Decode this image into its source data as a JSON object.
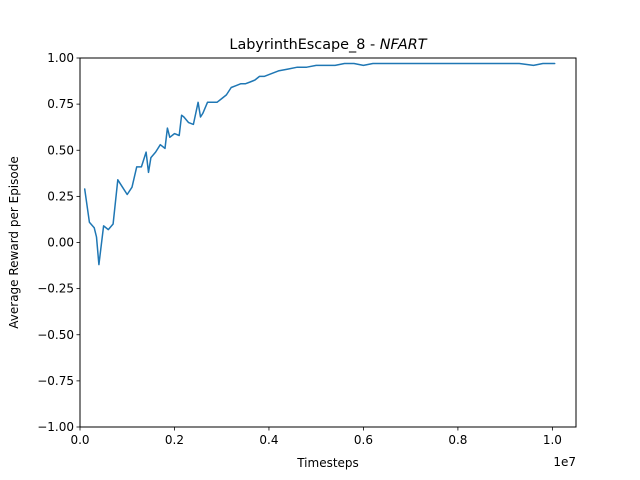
{
  "chart_data": {
    "type": "line",
    "title_main": "LabyrinthEscape_8 - ",
    "title_emph": "NFART",
    "xlabel": "Timesteps",
    "ylabel": "Average Reward per Episode",
    "x_offset_label": "1e7",
    "x_scale": 10000000,
    "xlim": [
      0,
      10500000
    ],
    "ylim": [
      -1.0,
      1.0
    ],
    "x_ticks": [
      0,
      2000000,
      4000000,
      6000000,
      8000000,
      10000000
    ],
    "x_tick_labels": [
      "0.0",
      "0.2",
      "0.4",
      "0.6",
      "0.8",
      "1.0"
    ],
    "y_ticks": [
      -1.0,
      -0.75,
      -0.5,
      -0.25,
      0.0,
      0.25,
      0.5,
      0.75,
      1.0
    ],
    "y_tick_labels": [
      "−1.00",
      "−0.75",
      "−0.50",
      "−0.25",
      "0.00",
      "0.25",
      "0.50",
      "0.75",
      "1.00"
    ],
    "grid": false,
    "series": [
      {
        "color": "#1f77b4",
        "x": [
          100000,
          200000,
          300000,
          350000,
          400000,
          500000,
          600000,
          700000,
          800000,
          900000,
          1000000,
          1100000,
          1200000,
          1300000,
          1400000,
          1450000,
          1500000,
          1600000,
          1700000,
          1800000,
          1850000,
          1900000,
          2000000,
          2100000,
          2150000,
          2200000,
          2300000,
          2400000,
          2500000,
          2550000,
          2600000,
          2700000,
          2800000,
          2900000,
          3000000,
          3100000,
          3200000,
          3300000,
          3400000,
          3500000,
          3600000,
          3700000,
          3800000,
          3900000,
          4000000,
          4200000,
          4400000,
          4600000,
          4800000,
          5000000,
          5200000,
          5400000,
          5600000,
          5800000,
          6000000,
          6200000,
          6500000,
          7000000,
          7500000,
          8000000,
          8500000,
          9000000,
          9300000,
          9600000,
          9800000,
          10000000,
          10050000
        ],
        "y": [
          0.29,
          0.11,
          0.08,
          0.03,
          -0.12,
          0.09,
          0.07,
          0.1,
          0.34,
          0.3,
          0.26,
          0.3,
          0.41,
          0.41,
          0.49,
          0.38,
          0.46,
          0.49,
          0.53,
          0.51,
          0.62,
          0.57,
          0.59,
          0.58,
          0.69,
          0.68,
          0.65,
          0.64,
          0.76,
          0.68,
          0.7,
          0.76,
          0.76,
          0.76,
          0.78,
          0.8,
          0.84,
          0.85,
          0.86,
          0.86,
          0.87,
          0.88,
          0.9,
          0.9,
          0.91,
          0.93,
          0.94,
          0.95,
          0.95,
          0.96,
          0.96,
          0.96,
          0.97,
          0.97,
          0.96,
          0.97,
          0.97,
          0.97,
          0.97,
          0.97,
          0.97,
          0.97,
          0.97,
          0.96,
          0.97,
          0.97,
          0.97
        ]
      }
    ]
  }
}
